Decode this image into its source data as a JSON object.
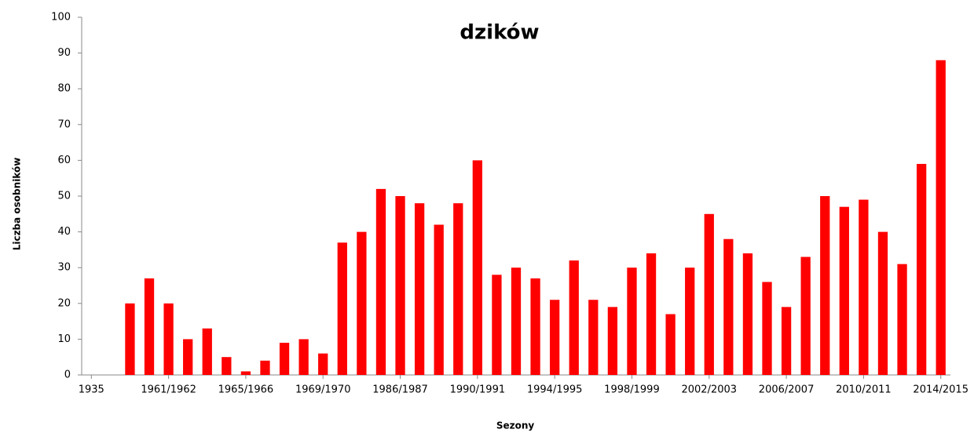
{
  "chart_data": {
    "type": "bar",
    "title": "dzików",
    "x_label": "Sezony",
    "y_label": "Liczba osobników",
    "categories": [
      "1935",
      null,
      null,
      null,
      "1961/1962",
      null,
      null,
      null,
      "1965/1966",
      null,
      null,
      null,
      "1969/1970",
      null,
      null,
      null,
      "1986/1987",
      null,
      null,
      null,
      "1990/1991",
      null,
      null,
      null,
      "1994/1995",
      null,
      null,
      null,
      "1998/1999",
      null,
      null,
      null,
      "2002/2003",
      null,
      null,
      null,
      "2006/2007",
      null,
      null,
      null,
      "2010/2011",
      null,
      null,
      null,
      "2014/2015"
    ],
    "values": [
      null,
      null,
      20,
      27,
      20,
      10,
      13,
      5,
      1,
      4,
      9,
      10,
      6,
      37,
      40,
      52,
      50,
      48,
      42,
      48,
      60,
      28,
      30,
      27,
      21,
      32,
      21,
      19,
      30,
      34,
      17,
      30,
      45,
      38,
      34,
      26,
      19,
      33,
      50,
      47,
      49,
      40,
      31,
      59,
      88
    ],
    "color": "#ff0000",
    "ylim": [
      0,
      100
    ],
    "yticks": [
      0,
      10,
      20,
      30,
      40,
      50,
      60,
      70,
      80,
      90,
      100
    ],
    "grid": false
  }
}
